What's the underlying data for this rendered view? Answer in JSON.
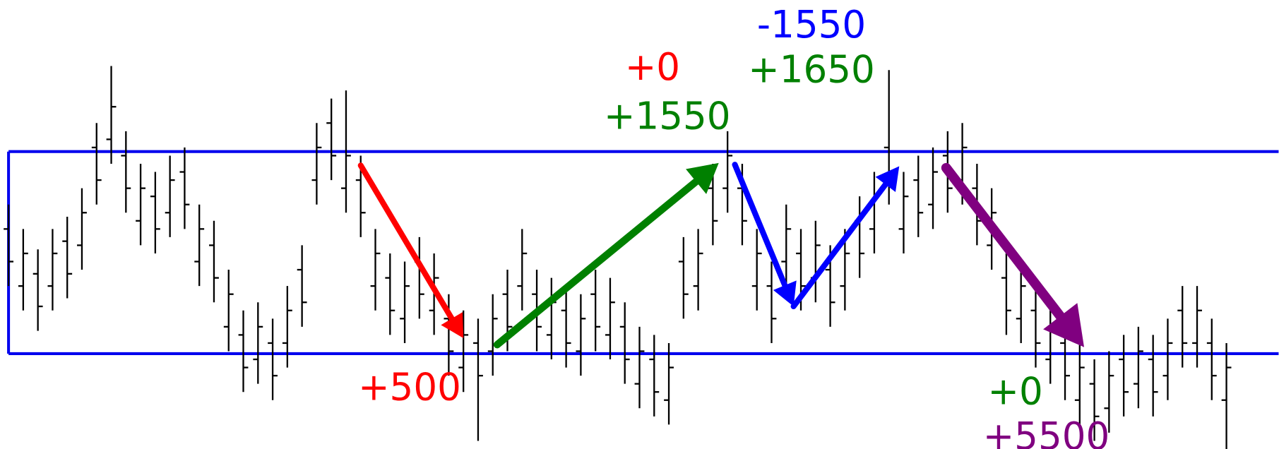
{
  "chart_data": {
    "type": "ohlc",
    "ylim": [
      0,
      551
    ],
    "bar_color": "#000000",
    "open": [
      270,
      200,
      215,
      200,
      255,
      250,
      370,
      380,
      360,
      280,
      310,
      290,
      340,
      230,
      250,
      150,
      140,
      110,
      130,
      130,
      220,
      330,
      400,
      320,
      330,
      200,
      210,
      160,
      230,
      170,
      160,
      100,
      130,
      120,
      190,
      200,
      190,
      140,
      170,
      120,
      190,
      140,
      150,
      80,
      110,
      60,
      230,
      200,
      320,
      320,
      320,
      200,
      200,
      230,
      240,
      210,
      220,
      200,
      280,
      270,
      370,
      270,
      330,
      300,
      360,
      330,
      320,
      250,
      210,
      160,
      170,
      110,
      130,
      60,
      80,
      50,
      110,
      80,
      110,
      90,
      170,
      130,
      130,
      60
    ],
    "high": [
      300,
      270,
      245,
      270,
      285,
      320,
      400,
      470,
      390,
      350,
      340,
      360,
      370,
      300,
      280,
      220,
      170,
      180,
      160,
      200,
      250,
      400,
      430,
      440,
      360,
      270,
      240,
      230,
      260,
      240,
      190,
      170,
      160,
      190,
      220,
      270,
      220,
      210,
      200,
      190,
      220,
      210,
      180,
      150,
      140,
      130,
      260,
      270,
      350,
      390,
      350,
      270,
      230,
      300,
      270,
      280,
      250,
      270,
      310,
      340,
      465,
      340,
      360,
      370,
      390,
      400,
      350,
      320,
      240,
      230,
      200,
      180,
      160,
      130,
      110,
      120,
      140,
      150,
      140,
      160,
      200,
      200,
      160,
      130
    ],
    "low": [
      200,
      170,
      145,
      170,
      185,
      220,
      300,
      350,
      290,
      250,
      240,
      260,
      270,
      200,
      180,
      120,
      70,
      80,
      60,
      100,
      150,
      300,
      330,
      290,
      260,
      170,
      140,
      130,
      160,
      140,
      90,
      70,
      10,
      90,
      120,
      170,
      120,
      110,
      100,
      90,
      120,
      110,
      80,
      50,
      40,
      30,
      160,
      170,
      250,
      290,
      250,
      170,
      130,
      200,
      170,
      180,
      150,
      170,
      210,
      240,
      300,
      240,
      260,
      270,
      290,
      300,
      250,
      220,
      140,
      130,
      100,
      80,
      60,
      30,
      10,
      20,
      40,
      50,
      40,
      60,
      100,
      100,
      60,
      0
    ],
    "close": [
      230,
      240,
      175,
      240,
      215,
      290,
      330,
      420,
      320,
      320,
      270,
      330,
      300,
      270,
      210,
      190,
      100,
      150,
      90,
      170,
      180,
      370,
      360,
      360,
      290,
      240,
      170,
      200,
      190,
      210,
      120,
      140,
      90,
      160,
      150,
      240,
      150,
      180,
      130,
      160,
      150,
      180,
      110,
      120,
      70,
      100,
      190,
      240,
      280,
      360,
      280,
      240,
      160,
      270,
      200,
      250,
      180,
      240,
      240,
      310,
      330,
      310,
      290,
      340,
      320,
      370,
      280,
      290,
      170,
      200,
      130,
      150,
      90,
      100,
      40,
      90,
      70,
      120,
      70,
      130,
      130,
      170,
      90,
      100
    ],
    "channel": {
      "color": "#0000ee",
      "upper": 365,
      "lower": 117
    },
    "arrows": [
      {
        "color": "#ff0000",
        "from": [
          24,
          348
        ],
        "to": [
          31,
          136
        ]
      },
      {
        "color": "#008000",
        "from": [
          33.3,
          128
        ],
        "to": [
          48.4,
          351
        ]
      },
      {
        "color": "#0000ff",
        "from": [
          49.5,
          349
        ],
        "to": [
          53.5,
          175
        ]
      },
      {
        "color": "#0000ff",
        "from": [
          53.5,
          175
        ],
        "to": [
          60.7,
          347
        ]
      },
      {
        "color": "#800080",
        "from": [
          63.9,
          345
        ],
        "to": [
          73.3,
          125
        ]
      }
    ],
    "annotations": [
      {
        "text": "+500",
        "color": "#ff0000"
      },
      {
        "text": "+0",
        "color": "#ff0000"
      },
      {
        "text": "+1550",
        "color": "#008000"
      },
      {
        "text": "-1550",
        "color": "#0000ff"
      },
      {
        "text": "+1650",
        "color": "#008000"
      },
      {
        "text": "+0",
        "color": "#008000"
      },
      {
        "text": "+5500",
        "color": "#800080"
      }
    ]
  }
}
